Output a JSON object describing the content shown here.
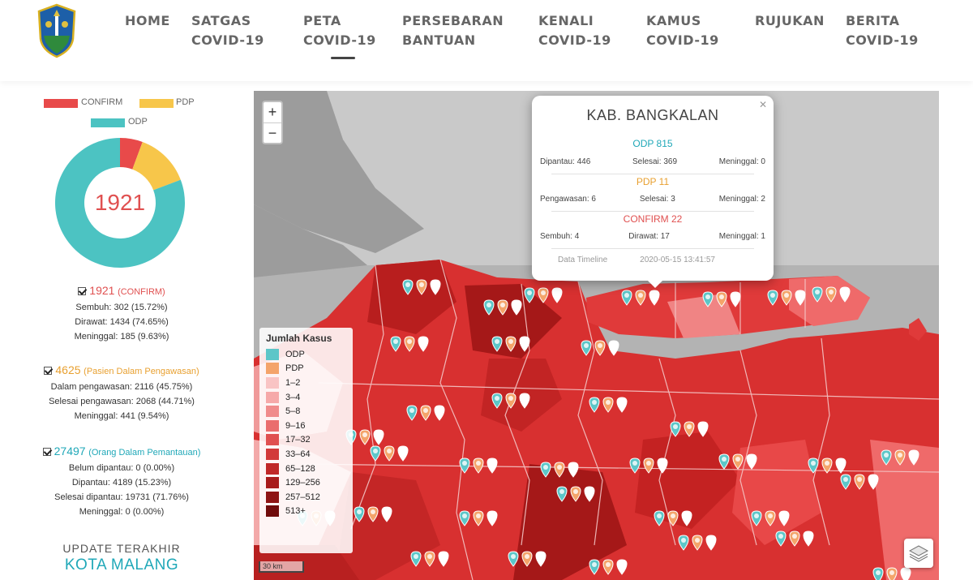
{
  "header": {
    "logo": "jawa-timur-emblem-icon",
    "nav": [
      {
        "line1": "HOME",
        "line2": ""
      },
      {
        "line1": "SATGAS",
        "line2": "COVID-19"
      },
      {
        "line1": "PETA",
        "line2": "COVID-19"
      },
      {
        "line1": "PERSEBARAN",
        "line2": "BANTUAN"
      },
      {
        "line1": "KENALI",
        "line2": "COVID-19"
      },
      {
        "line1": "KAMUS",
        "line2": "COVID-19"
      },
      {
        "line1": "RUJUKAN",
        "line2": ""
      },
      {
        "line1": "BERITA",
        "line2": "COVID-19"
      }
    ],
    "active_index": 2
  },
  "chart_data": {
    "type": "pie",
    "legend": [
      "CONFIRM",
      "PDP",
      "ODP"
    ],
    "colors": [
      "#e84a4a",
      "#f7c64a",
      "#4cc3c2"
    ],
    "values": [
      1921,
      4625,
      27497
    ],
    "center_label": "1921",
    "slice_labels": [
      "",
      "",
      ""
    ]
  },
  "stats": {
    "confirm": {
      "count": "1921",
      "label": "(CONFIRM)",
      "lines": [
        "Sembuh: 302 (15.72%)",
        "Dirawat: 1434 (74.65%)",
        "Meninggal: 185 (9.63%)"
      ]
    },
    "pdp": {
      "count": "4625",
      "label": "(Pasien Dalam Pengawasan)",
      "lines": [
        "Dalam pengawasan: 2116 (45.75%)",
        "Selesai pengawasan: 2068 (44.71%)",
        "Meninggal: 441 (9.54%)"
      ]
    },
    "odp": {
      "count": "27497",
      "label": "(Orang Dalam Pemantauan)",
      "lines": [
        "Belum dipantau: 0 (0.00%)",
        "Dipantau: 4189 (15.23%)",
        "Selesai dipantau: 19731 (71.76%)",
        "Meninggal: 0 (0.00%)"
      ]
    }
  },
  "update": {
    "title": "UPDATE TERAKHIR",
    "place": "KOTA MALANG"
  },
  "map": {
    "zoom_in": "+",
    "zoom_out": "−",
    "legend_title": "Jumlah Kasus",
    "legend_items": [
      {
        "label": "ODP",
        "color": "#5cc6c8"
      },
      {
        "label": "PDP",
        "color": "#f4a46a"
      },
      {
        "label": "1–2",
        "color": "#f9c4c4"
      },
      {
        "label": "3–4",
        "color": "#f6a9a9"
      },
      {
        "label": "5–8",
        "color": "#f08c8c"
      },
      {
        "label": "9–16",
        "color": "#ea6e6e"
      },
      {
        "label": "17–32",
        "color": "#e05050"
      },
      {
        "label": "33–64",
        "color": "#d23a3a"
      },
      {
        "label": "65–128",
        "color": "#c02828"
      },
      {
        "label": "129–256",
        "color": "#a81c1c"
      },
      {
        "label": "257–512",
        "color": "#8e1414"
      },
      {
        "label": "513+",
        "color": "#700c0c"
      }
    ],
    "scale": "30 km",
    "popup": {
      "title": "KAB. BANGKALAN",
      "odp": {
        "title": "ODP 815",
        "items": [
          "Dipantau: 446",
          "Selesai: 369",
          "Meninggal: 0"
        ]
      },
      "pdp": {
        "title": "PDP 11",
        "items": [
          "Pengawasan: 6",
          "Selesai: 3",
          "Meninggal: 2"
        ]
      },
      "confirm": {
        "title": "CONFIRM 22",
        "items": [
          "Sembuh: 4",
          "Dirawat: 17",
          "Meninggal: 1"
        ]
      },
      "timeline_label": "Data Timeline",
      "timeline_value": "2020-05-15 13:41:57"
    },
    "colors": {
      "sea": "#b3b3b3",
      "land_dark": "#c42222",
      "land_mid": "#e03a3a",
      "land_light": "#f07a7a",
      "land_pale": "#f4a8a8",
      "odp_pin": "#5cc6c8",
      "pdp_pin": "#f4a46a"
    }
  }
}
